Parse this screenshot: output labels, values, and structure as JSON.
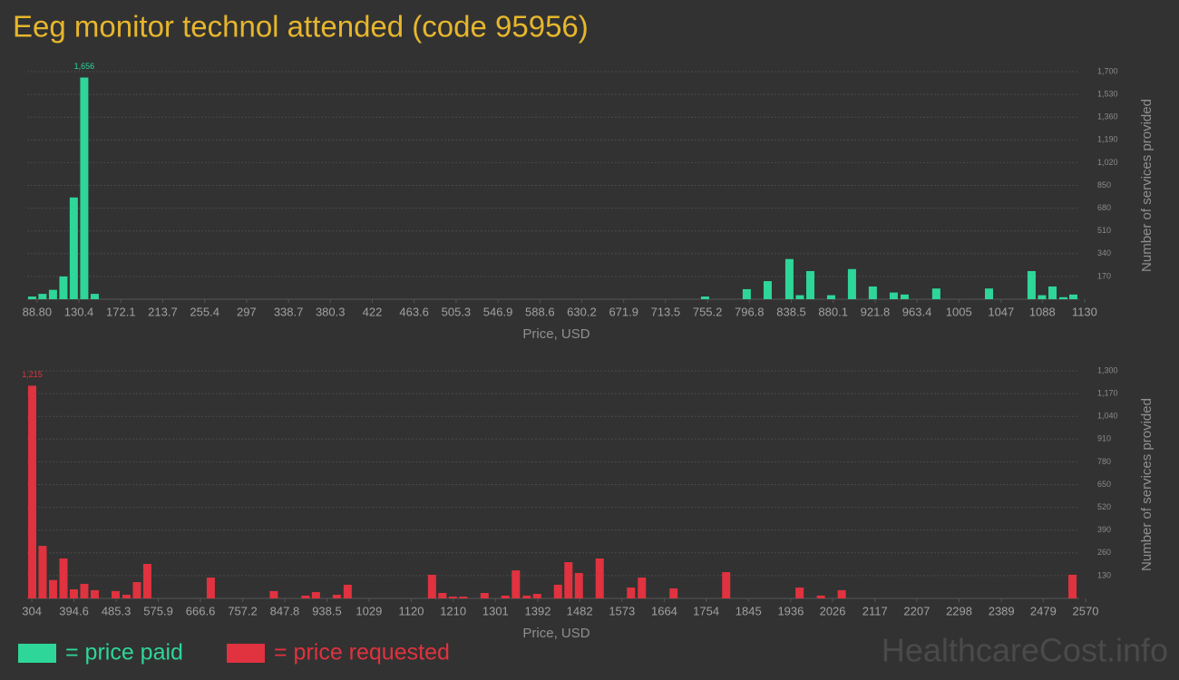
{
  "title": "Eeg monitor technol attended (code 95956)",
  "watermark": "HealthcareCost.info",
  "chart_data": [
    {
      "type": "bar",
      "grid": true,
      "x_label": "Price, USD",
      "y_label": "Number of services provided",
      "xlim": [
        79,
        1131
      ],
      "xticks": [
        {
          "value": 88.8,
          "label": "88.80"
        },
        130.4,
        172.1,
        213.7,
        255.4,
        297,
        338.7,
        380.3,
        422,
        463.6,
        505.3,
        546.9,
        588.6,
        630.2,
        671.9,
        713.5,
        755.2,
        796.8,
        838.5,
        880.1,
        921.8,
        963.4,
        1005,
        1047,
        1088,
        1130
      ],
      "ylim": [
        0,
        1700
      ],
      "yticks": [
        170,
        340,
        510,
        680,
        850,
        {
          "value": 1020,
          "label": "1,020"
        },
        {
          "value": 1190,
          "label": "1,190"
        },
        {
          "value": 1360,
          "label": "1,360"
        },
        {
          "value": 1530,
          "label": "1,530"
        },
        {
          "value": 1700,
          "label": "1,700"
        }
      ],
      "x": [
        83.9,
        94.2,
        104.6,
        115,
        125.3,
        135.7,
        146.1,
        752.8,
        794.2,
        815,
        836.6,
        847,
        857.4,
        878.1,
        898.8,
        919.5,
        940.3,
        951.1,
        982.6,
        1035,
        1077.3,
        1087.7,
        1098.1,
        1108.9,
        1118.8
      ],
      "series": [
        {
          "name": "= price paid",
          "color": "#2ed699",
          "values": [
            20,
            40,
            70,
            170,
            760,
            1656,
            40,
            20,
            75,
            135,
            300,
            30,
            210,
            30,
            225,
            95,
            50,
            35,
            80,
            80,
            210,
            30,
            95,
            15,
            35
          ],
          "value_labels": [
            null,
            null,
            null,
            null,
            null,
            "1,656",
            null,
            null,
            null,
            null,
            null,
            null,
            null,
            null,
            null,
            null,
            null,
            null,
            null,
            null,
            null,
            null,
            null,
            null,
            null
          ]
        }
      ]
    },
    {
      "type": "bar",
      "grid": true,
      "x_label": "Price, USD",
      "y_label": "Number of services provided",
      "xlim": [
        294,
        2570
      ],
      "xticks": [
        304,
        394.6,
        485.3,
        575.9,
        666.6,
        757.2,
        847.8,
        938.5,
        1029,
        1120,
        1210,
        1301,
        1392,
        1482,
        1573,
        1664,
        1754,
        1845,
        1936,
        2026,
        2117,
        2207,
        2298,
        2389,
        2479,
        2570
      ],
      "ylim": [
        0,
        1300
      ],
      "yticks": [
        130,
        260,
        390,
        520,
        650,
        780,
        910,
        {
          "value": 1040,
          "label": "1,040"
        },
        {
          "value": 1170,
          "label": "1,170"
        },
        {
          "value": 1300,
          "label": "1,300"
        }
      ],
      "x": [
        304.7,
        327.1,
        349.6,
        372,
        394.4,
        416.8,
        439.2,
        484.1,
        507.5,
        529.9,
        552.3,
        688.8,
        824.3,
        892.5,
        914.9,
        959.7,
        983.1,
        1164.5,
        1186.9,
        1209.3,
        1231.7,
        1277.5,
        1322.3,
        1344.8,
        1368.2,
        1390.6,
        1435.4,
        1457.9,
        1480.3,
        1525.1,
        1592.4,
        1615.8,
        1684,
        1797.1,
        1955,
        2000.8,
        2045.6,
        2541.8
      ],
      "series": [
        {
          "name": "= price requested",
          "color": "#e0323f",
          "values": [
            1215,
            300,
            105,
            228,
            52,
            83,
            47,
            42,
            21,
            93,
            197,
            119,
            42,
            16,
            36,
            21,
            78,
            135,
            31,
            10,
            10,
            31,
            16,
            160,
            16,
            26,
            78,
            207,
            145,
            228,
            62,
            119,
            57,
            150,
            62,
            16,
            47,
            135
          ],
          "value_labels": [
            "1,215",
            null,
            null,
            null,
            null,
            null,
            null,
            null,
            null,
            null,
            null,
            null,
            null,
            null,
            null,
            null,
            null,
            null,
            null,
            null,
            null,
            null,
            null,
            null,
            null,
            null,
            null,
            null,
            null,
            null,
            null,
            null,
            null,
            null,
            null,
            null,
            null,
            null
          ]
        }
      ]
    }
  ]
}
